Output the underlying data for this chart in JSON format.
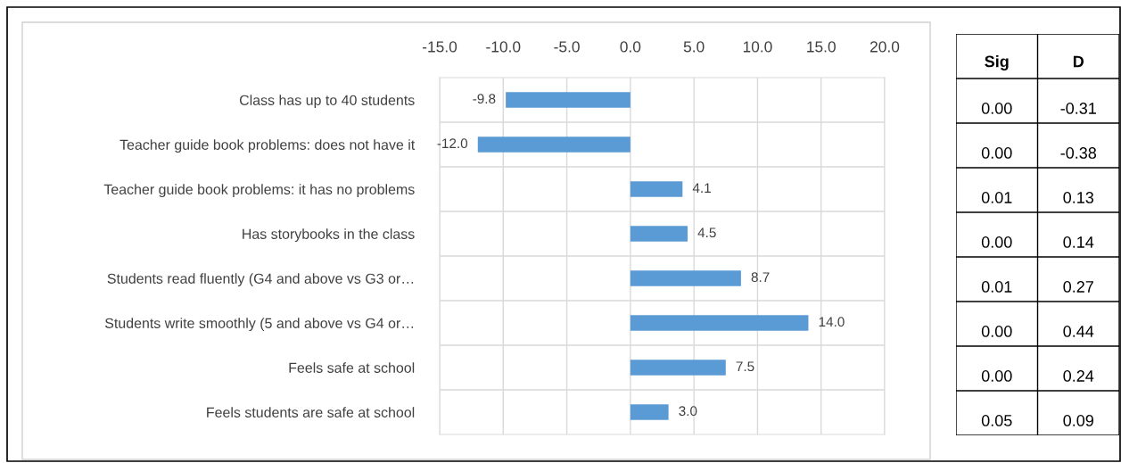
{
  "chart_data": [
    {
      "type": "bar",
      "orientation": "horizontal",
      "categories": [
        "Class has up to 40 students",
        "Teacher guide book problems: does not have it",
        "Teacher guide book problems: it has no problems",
        "Has storybooks in the class",
        "Students read fluently (G4 and above vs G3 or…",
        "Students write smoothly (5 and above vs G4 or…",
        "Feels safe at school",
        "Feels students are safe at school"
      ],
      "values": [
        -9.8,
        -12.0,
        4.1,
        4.5,
        8.7,
        14.0,
        7.5,
        3.0
      ],
      "value_labels": [
        "-9.8",
        "-12.0",
        "4.1",
        "4.5",
        "8.7",
        "14.0",
        "7.5",
        "3.0"
      ],
      "color": "#5b9bd5",
      "xlim": [
        -15,
        20
      ],
      "xticks": [
        {
          "value": -15,
          "label": "-15.0"
        },
        {
          "value": -10,
          "label": "-10.0"
        },
        {
          "value": -5,
          "label": "-5.0"
        },
        {
          "value": 0,
          "label": "0.0"
        },
        {
          "value": 5,
          "label": "5.0"
        },
        {
          "value": 10,
          "label": "10.0"
        },
        {
          "value": 15,
          "label": "15.0"
        },
        {
          "value": 20,
          "label": "20.0"
        }
      ],
      "grid": true,
      "legend": false
    },
    {
      "type": "other",
      "categories": [
        "Sig",
        "D"
      ],
      "annotations": [
        "0.00",
        "-0.31",
        "0.00",
        "-0.38",
        "0.01",
        "0.13",
        "0.00",
        "0.14",
        "0.01",
        "0.27",
        "0.00",
        "0.44",
        "0.00",
        "0.24",
        "0.05",
        "0.09"
      ]
    }
  ]
}
